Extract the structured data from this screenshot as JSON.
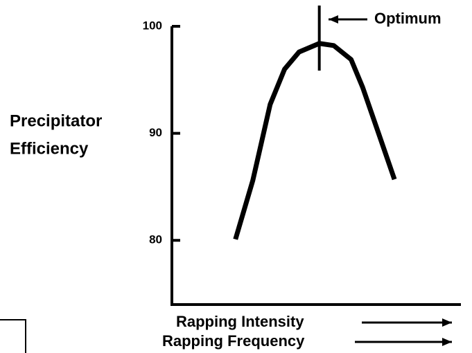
{
  "chart_data": {
    "type": "line",
    "ylabel": [
      "Precipitator",
      "Efficiency"
    ],
    "xlabel": [
      "Rapping Intensity",
      "Rapping Frequency"
    ],
    "x": [
      22,
      28,
      34,
      39,
      44,
      51,
      56,
      62,
      66,
      71,
      77
    ],
    "series": [
      {
        "name": null,
        "color": "#000000",
        "values": [
          80.1,
          85.6,
          92.7,
          96,
          97.6,
          98.4,
          98.2,
          96.9,
          94.3,
          90.4,
          85.7
        ]
      }
    ],
    "xlim": [
      0,
      100
    ],
    "ylim": [
      74,
      100
    ],
    "yticks": [
      80,
      90,
      100
    ],
    "annotation": {
      "label": "Optimum",
      "x": 51
    }
  }
}
